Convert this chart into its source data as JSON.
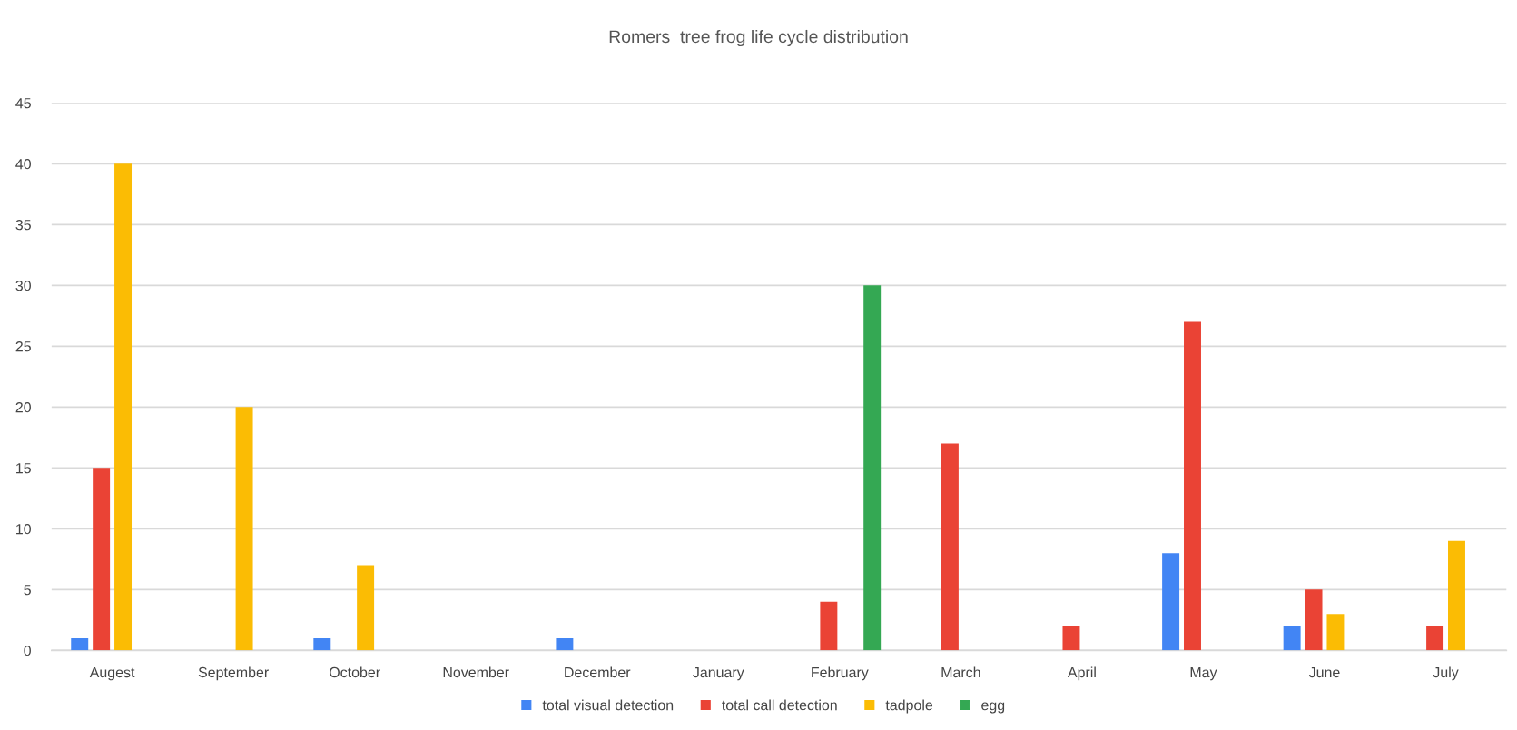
{
  "chart_data": {
    "type": "bar",
    "title": "Romers  tree frog life cycle distribution",
    "categories": [
      "Augest",
      "September",
      "October",
      "November",
      "December",
      "January",
      "February",
      "March",
      "April",
      "May",
      "June",
      "July"
    ],
    "series": [
      {
        "name": "total visual detection",
        "color": "#4285f4",
        "values": [
          1,
          null,
          1,
          null,
          1,
          null,
          null,
          null,
          null,
          8,
          2,
          null
        ]
      },
      {
        "name": "total call detection",
        "color": "#ea4335",
        "values": [
          15,
          null,
          null,
          null,
          null,
          null,
          4,
          17,
          2,
          27,
          5,
          2
        ]
      },
      {
        "name": "tadpole",
        "color": "#fbbc04",
        "values": [
          40,
          20,
          7,
          null,
          null,
          null,
          null,
          null,
          null,
          null,
          3,
          9
        ]
      },
      {
        "name": "egg",
        "color": "#34a853",
        "values": [
          null,
          null,
          null,
          null,
          null,
          null,
          30,
          null,
          null,
          null,
          null,
          null
        ]
      }
    ],
    "ylim": [
      0,
      45
    ],
    "yticks": [
      0,
      5,
      10,
      15,
      20,
      25,
      30,
      35,
      40,
      45
    ],
    "grid": "y",
    "legend": "bottom"
  }
}
